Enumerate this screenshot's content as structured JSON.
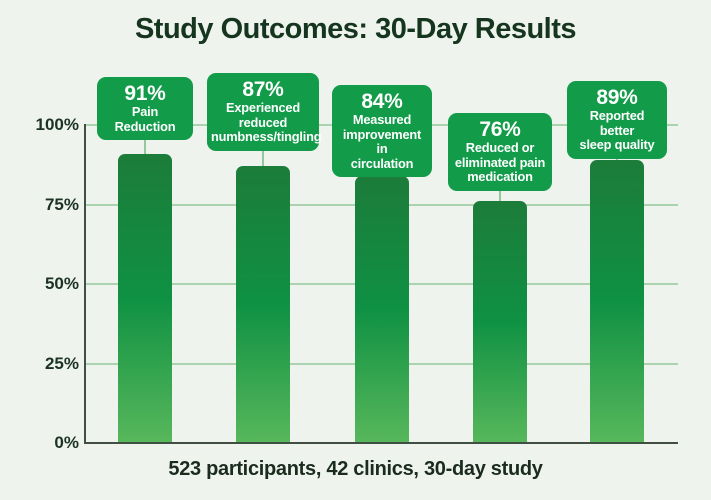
{
  "title": "Study Outcomes: 30-Day Results",
  "footer": "523 participants, 42 clinics, 30-day study",
  "y_axis": {
    "ticks": [
      {
        "label": "100%",
        "value": 100
      },
      {
        "label": "75%",
        "value": 75
      },
      {
        "label": "50%",
        "value": 50
      },
      {
        "label": "25%",
        "value": 25
      },
      {
        "label": "0%",
        "value": 0
      }
    ]
  },
  "chart_data": {
    "type": "bar",
    "title": "Study Outcomes: 30-Day Results",
    "xlabel": "",
    "ylabel": "",
    "ylim": [
      0,
      100
    ],
    "ytick_labels": [
      "0%",
      "25%",
      "50%",
      "75%",
      "100%"
    ],
    "grid": true,
    "legend": "none",
    "bars": [
      {
        "value": 91,
        "value_label": "91%",
        "label": "Pain Reduction",
        "label_lines": [
          "Pain Reduction"
        ]
      },
      {
        "value": 87,
        "value_label": "87%",
        "label": "Experienced reduced numbness/tingling",
        "label_lines": [
          "Experienced",
          "reduced",
          "numbness/tingling"
        ]
      },
      {
        "value": 84,
        "value_label": "84%",
        "label": "Measured improvement in circulation",
        "label_lines": [
          "Measured",
          "improvement in",
          "circulation"
        ]
      },
      {
        "value": 76,
        "value_label": "76%",
        "label": "Reduced or eliminated pain medication",
        "label_lines": [
          "Reduced or",
          "eliminated pain",
          "medication"
        ]
      },
      {
        "value": 89,
        "value_label": "89%",
        "label": "Reported better sleep quality",
        "label_lines": [
          "Reported better",
          "sleep quality"
        ]
      }
    ],
    "footnote": "523 participants, 42 clinics, 30-day study"
  },
  "colors": {
    "background": "#eef3ee",
    "title": "#16351e",
    "footer": "#1b2b1e",
    "callout_green": "#129c4a",
    "bar_gradient_top": "#1c7c39",
    "bar_gradient_mid": "#0f9143",
    "bar_gradient_bottom": "#57b75b",
    "gridline": "#abd3b0",
    "axis": "#414e44",
    "tick_label": "#1c3324",
    "connector": "#93c89d"
  }
}
